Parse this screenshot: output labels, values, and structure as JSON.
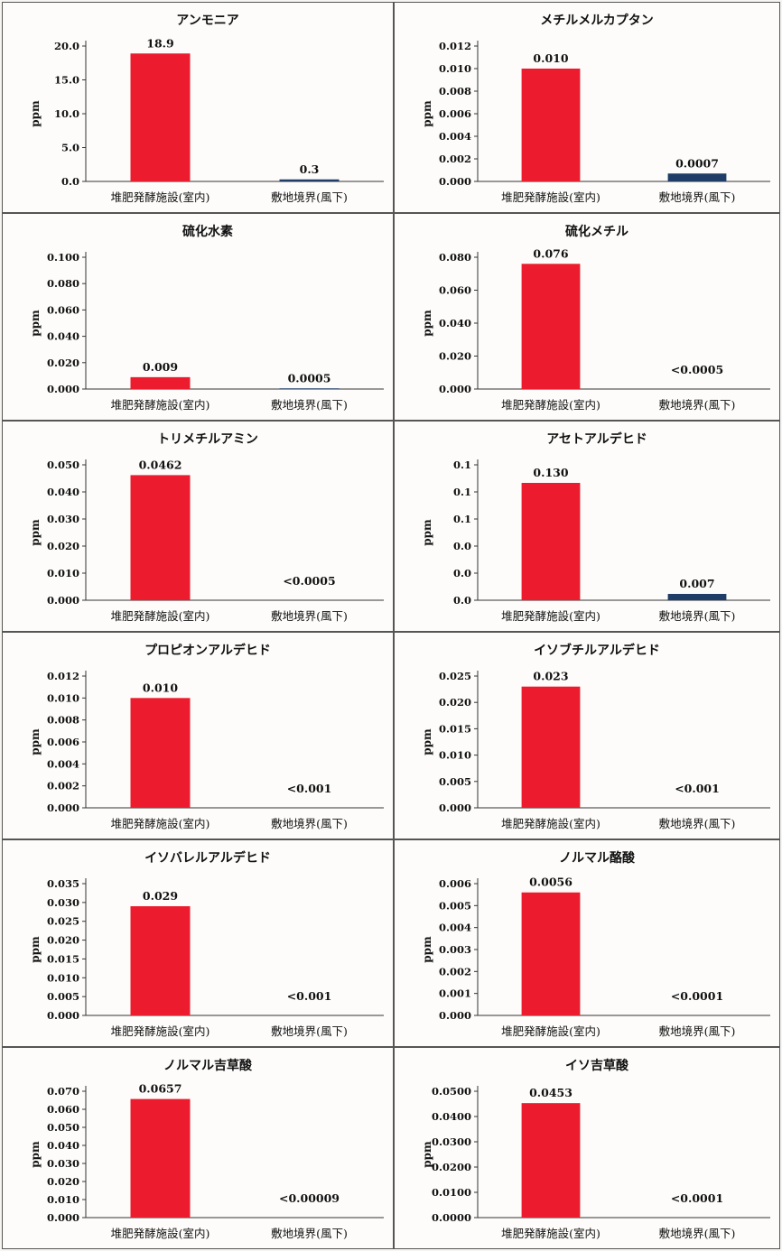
{
  "figure": {
    "ylabel": "ppm",
    "categories": [
      "堆肥発酵施設(室内)",
      "敷地境界(風下)"
    ],
    "colors": {
      "inside": "#ec1c2e",
      "boundary": "#1f3d66"
    }
  },
  "chart_data": [
    {
      "type": "bar",
      "title": "アンモニア",
      "ylabel": "ppm",
      "categories": [
        "堆肥発酵施設(室内)",
        "敷地境界(風下)"
      ],
      "values": [
        18.9,
        0.3
      ],
      "labels": [
        "18.9",
        "0.3"
      ],
      "yticks": [
        "0.0",
        "5.0",
        "10.0",
        "15.0",
        "20.0"
      ],
      "ylim": [
        0,
        20
      ]
    },
    {
      "type": "bar",
      "title": "メチルメルカプタン",
      "ylabel": "ppm",
      "categories": [
        "堆肥発酵施設(室内)",
        "敷地境界(風下)"
      ],
      "values": [
        0.01,
        0.0007
      ],
      "labels": [
        "0.010",
        "0.0007"
      ],
      "yticks": [
        "0.000",
        "0.002",
        "0.004",
        "0.006",
        "0.008",
        "0.010",
        "0.012"
      ],
      "ylim": [
        0,
        0.012
      ]
    },
    {
      "type": "bar",
      "title": "硫化水素",
      "ylabel": "ppm",
      "categories": [
        "堆肥発酵施設(室内)",
        "敷地境界(風下)"
      ],
      "values": [
        0.009,
        0.0005
      ],
      "labels": [
        "0.009",
        "0.0005"
      ],
      "yticks": [
        "0.000",
        "0.020",
        "0.040",
        "0.060",
        "0.080",
        "0.100"
      ],
      "ylim": [
        0,
        0.1
      ]
    },
    {
      "type": "bar",
      "title": "硫化メチル",
      "ylabel": "ppm",
      "categories": [
        "堆肥発酵施設(室内)",
        "敷地境界(風下)"
      ],
      "values": [
        0.076,
        0
      ],
      "labels": [
        "0.076",
        "<0.0005"
      ],
      "yticks": [
        "0.000",
        "0.020",
        "0.040",
        "0.060",
        "0.080"
      ],
      "ylim": [
        0,
        0.08
      ]
    },
    {
      "type": "bar",
      "title": "トリメチルアミン",
      "ylabel": "ppm",
      "categories": [
        "堆肥発酵施設(室内)",
        "敷地境界(風下)"
      ],
      "values": [
        0.0462,
        0
      ],
      "labels": [
        "0.0462",
        "<0.0005"
      ],
      "yticks": [
        "0.000",
        "0.010",
        "0.020",
        "0.030",
        "0.040",
        "0.050"
      ],
      "ylim": [
        0,
        0.05
      ]
    },
    {
      "type": "bar",
      "title": "アセトアルデヒド",
      "ylabel": "ppm",
      "categories": [
        "堆肥発酵施設(室内)",
        "敷地境界(風下)"
      ],
      "values": [
        0.13,
        0.007
      ],
      "labels": [
        "0.130",
        "0.007"
      ],
      "yticks": [
        "0.0",
        "0.0",
        "0.0",
        "0.1",
        "0.1",
        "0.1"
      ],
      "ylim": [
        0,
        0.15
      ]
    },
    {
      "type": "bar",
      "title": "プロピオンアルデヒド",
      "ylabel": "ppm",
      "categories": [
        "堆肥発酵施設(室内)",
        "敷地境界(風下)"
      ],
      "values": [
        0.01,
        0
      ],
      "labels": [
        "0.010",
        "<0.001"
      ],
      "yticks": [
        "0.000",
        "0.002",
        "0.004",
        "0.006",
        "0.008",
        "0.010",
        "0.012"
      ],
      "ylim": [
        0,
        0.012
      ]
    },
    {
      "type": "bar",
      "title": "イソブチルアルデヒド",
      "ylabel": "ppm",
      "categories": [
        "堆肥発酵施設(室内)",
        "敷地境界(風下)"
      ],
      "values": [
        0.023,
        0
      ],
      "labels": [
        "0.023",
        "<0.001"
      ],
      "yticks": [
        "0.000",
        "0.005",
        "0.010",
        "0.015",
        "0.020",
        "0.025"
      ],
      "ylim": [
        0,
        0.025
      ]
    },
    {
      "type": "bar",
      "title": "イソバレルアルデヒド",
      "ylabel": "ppm",
      "categories": [
        "堆肥発酵施設(室内)",
        "敷地境界(風下)"
      ],
      "values": [
        0.029,
        0
      ],
      "labels": [
        "0.029",
        "<0.001"
      ],
      "yticks": [
        "0.000",
        "0.005",
        "0.010",
        "0.015",
        "0.020",
        "0.025",
        "0.030",
        "0.035"
      ],
      "ylim": [
        0,
        0.035
      ]
    },
    {
      "type": "bar",
      "title": "ノルマル酪酸",
      "ylabel": "ppm",
      "categories": [
        "堆肥発酵施設(室内)",
        "敷地境界(風下)"
      ],
      "values": [
        0.0056,
        0
      ],
      "labels": [
        "0.0056",
        "<0.0001"
      ],
      "yticks": [
        "0.000",
        "0.001",
        "0.002",
        "0.003",
        "0.004",
        "0.005",
        "0.006"
      ],
      "ylim": [
        0,
        0.006
      ]
    },
    {
      "type": "bar",
      "title": "ノルマル吉草酸",
      "ylabel": "ppm",
      "categories": [
        "堆肥発酵施設(室内)",
        "敷地境界(風下)"
      ],
      "values": [
        0.0657,
        0
      ],
      "labels": [
        "0.0657",
        "<0.00009"
      ],
      "yticks": [
        "0.000",
        "0.010",
        "0.020",
        "0.030",
        "0.040",
        "0.050",
        "0.060",
        "0.070"
      ],
      "ylim": [
        0,
        0.07
      ]
    },
    {
      "type": "bar",
      "title": "イソ吉草酸",
      "ylabel": "ppm",
      "categories": [
        "堆肥発酵施設(室内)",
        "敷地境界(風下)"
      ],
      "values": [
        0.0453,
        0
      ],
      "labels": [
        "0.0453",
        "<0.0001"
      ],
      "yticks": [
        "0.0000",
        "0.0100",
        "0.0200",
        "0.0300",
        "0.0400",
        "0.0500"
      ],
      "ylim": [
        0,
        0.05
      ]
    }
  ]
}
